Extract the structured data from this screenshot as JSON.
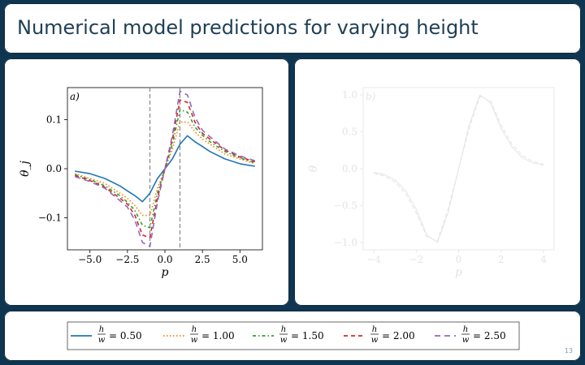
{
  "slide": {
    "title": "Numerical model predictions for varying height",
    "page_number": "13"
  },
  "colors": {
    "frame": "#0f3550",
    "title_text": "#1f3f55",
    "series": [
      "#1f77b4",
      "#ff7f0e",
      "#2ca02c",
      "#d62728",
      "#9467bd"
    ],
    "faded": "#e4e4e4"
  },
  "chart_data": [
    {
      "type": "line",
      "panel_label": "a)",
      "xlabel": "p",
      "ylabel": "θ_j",
      "xlim": [
        -6.5,
        6.5
      ],
      "ylim": [
        -0.165,
        0.165
      ],
      "xticks": [
        -5.0,
        -2.5,
        0.0,
        2.5,
        5.0
      ],
      "xtick_labels": [
        "−5.0",
        "−2.5",
        "0.0",
        "2.5",
        "5.0"
      ],
      "yticks": [
        0.1,
        0.0,
        -0.1
      ],
      "ytick_labels": [
        "0.1",
        "0.0",
        "−0.1"
      ],
      "vlines": [
        -1.0,
        1.0
      ],
      "x": [
        -6.0,
        -5.0,
        -4.0,
        -3.0,
        -2.5,
        -2.0,
        -1.5,
        -1.0,
        -0.5,
        0.0,
        0.5,
        1.0,
        1.5,
        2.0,
        2.5,
        3.0,
        4.0,
        5.0,
        6.0
      ],
      "series": [
        {
          "name": "h/w = 0.50",
          "style": "solid",
          "values": [
            -0.005,
            -0.01,
            -0.02,
            -0.035,
            -0.045,
            -0.055,
            -0.067,
            -0.05,
            -0.02,
            0.0,
            0.02,
            0.05,
            0.067,
            0.055,
            0.045,
            0.035,
            0.02,
            0.01,
            0.005
          ]
        },
        {
          "name": "h/w = 1.00",
          "style": "dotted",
          "values": [
            -0.01,
            -0.02,
            -0.03,
            -0.05,
            -0.06,
            -0.075,
            -0.095,
            -0.095,
            -0.04,
            0.0,
            0.04,
            0.095,
            0.095,
            0.075,
            0.06,
            0.05,
            0.03,
            0.02,
            0.01
          ]
        },
        {
          "name": "h/w = 1.50",
          "style": "dashdot",
          "values": [
            -0.012,
            -0.022,
            -0.035,
            -0.055,
            -0.068,
            -0.085,
            -0.115,
            -0.12,
            -0.05,
            0.0,
            0.05,
            0.12,
            0.115,
            0.085,
            0.068,
            0.055,
            0.035,
            0.022,
            0.012
          ]
        },
        {
          "name": "h/w = 2.00",
          "style": "dashed",
          "values": [
            -0.014,
            -0.024,
            -0.038,
            -0.06,
            -0.072,
            -0.095,
            -0.135,
            -0.14,
            -0.06,
            0.0,
            0.06,
            0.14,
            0.135,
            0.095,
            0.072,
            0.06,
            0.038,
            0.024,
            0.014
          ]
        },
        {
          "name": "h/w = 2.50",
          "style": "longdash",
          "values": [
            -0.016,
            -0.026,
            -0.04,
            -0.065,
            -0.078,
            -0.105,
            -0.15,
            -0.158,
            -0.068,
            0.0,
            0.068,
            0.158,
            0.15,
            0.105,
            0.078,
            0.065,
            0.04,
            0.026,
            0.016
          ]
        }
      ]
    },
    {
      "type": "line",
      "panel_label": "b)",
      "xlabel": "p",
      "ylabel": "θ",
      "xlim": [
        -4.5,
        4.5
      ],
      "ylim": [
        -1.1,
        1.1
      ],
      "xticks": [
        -4,
        -2,
        0,
        2,
        4
      ],
      "xtick_labels": [
        "−4",
        "−2",
        "0",
        "2",
        "4"
      ],
      "yticks": [
        1.0,
        0.5,
        0.0,
        -0.5,
        -1.0
      ],
      "ytick_labels": [
        "1.0",
        "0.5",
        "0.0",
        "−0.5",
        "−1.0"
      ],
      "x": [
        -4.0,
        -3.5,
        -3.0,
        -2.5,
        -2.0,
        -1.5,
        -1.0,
        -0.5,
        0.0,
        0.5,
        1.0,
        1.5,
        2.0,
        2.5,
        3.0,
        3.5,
        4.0
      ],
      "series": [
        {
          "values": [
            -0.05,
            -0.08,
            -0.15,
            -0.3,
            -0.55,
            -0.9,
            -1.0,
            -0.6,
            0.0,
            0.6,
            1.0,
            0.9,
            0.55,
            0.3,
            0.15,
            0.08,
            0.05
          ]
        },
        {
          "values": [
            -0.06,
            -0.1,
            -0.18,
            -0.34,
            -0.6,
            -0.92,
            -0.98,
            -0.55,
            0.0,
            0.55,
            0.98,
            0.92,
            0.6,
            0.34,
            0.18,
            0.1,
            0.06
          ]
        }
      ]
    }
  ],
  "legend": {
    "entries": [
      {
        "label": "h/w = 0.50",
        "fraction_num": "h",
        "fraction_den": "w",
        "value": "= 0.50",
        "style": "solid"
      },
      {
        "label": "h/w = 1.00",
        "fraction_num": "h",
        "fraction_den": "w",
        "value": "= 1.00",
        "style": "dotted"
      },
      {
        "label": "h/w = 1.50",
        "fraction_num": "h",
        "fraction_den": "w",
        "value": "= 1.50",
        "style": "dashdot"
      },
      {
        "label": "h/w = 2.00",
        "fraction_num": "h",
        "fraction_den": "w",
        "value": "= 2.00",
        "style": "dashed"
      },
      {
        "label": "h/w = 2.50",
        "fraction_num": "h",
        "fraction_den": "w",
        "value": "= 2.50",
        "style": "longdash"
      }
    ]
  }
}
